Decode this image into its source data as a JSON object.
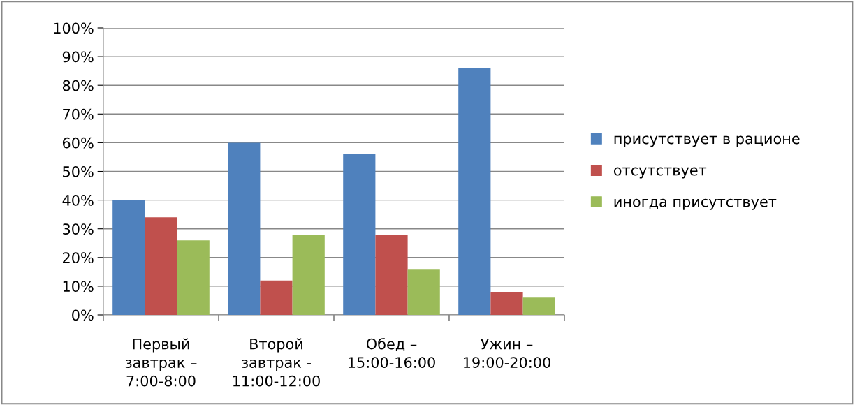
{
  "chart_data": {
    "type": "bar",
    "categories": [
      "Первый\nзавтрак –\n7:00-8:00",
      "Второй\nзавтрак -\n11:00-12:00",
      "Обед –\n15:00-16:00",
      "Ужин –\n19:00-20:00"
    ],
    "series": [
      {
        "name": "присутствует в рационе",
        "color": "#4f81bd",
        "values": [
          40,
          60,
          56,
          86
        ]
      },
      {
        "name": "отсутствует",
        "color": "#c0504d",
        "values": [
          34,
          12,
          28,
          8
        ]
      },
      {
        "name": "иногда присутствует",
        "color": "#9bbb59",
        "values": [
          26,
          28,
          16,
          6
        ]
      }
    ],
    "ylim": [
      0,
      100
    ],
    "yticks": [
      {
        "value": 0,
        "label": "0%"
      },
      {
        "value": 10,
        "label": "10%"
      },
      {
        "value": 20,
        "label": "20%"
      },
      {
        "value": 30,
        "label": "30%"
      },
      {
        "value": 40,
        "label": "40%"
      },
      {
        "value": 50,
        "label": "50%"
      },
      {
        "value": 60,
        "label": "60%"
      },
      {
        "value": 70,
        "label": "70%"
      },
      {
        "value": 80,
        "label": "80%"
      },
      {
        "value": 90,
        "label": "90%"
      },
      {
        "value": 100,
        "label": "100%"
      }
    ],
    "grid": "y",
    "legend": "right"
  }
}
